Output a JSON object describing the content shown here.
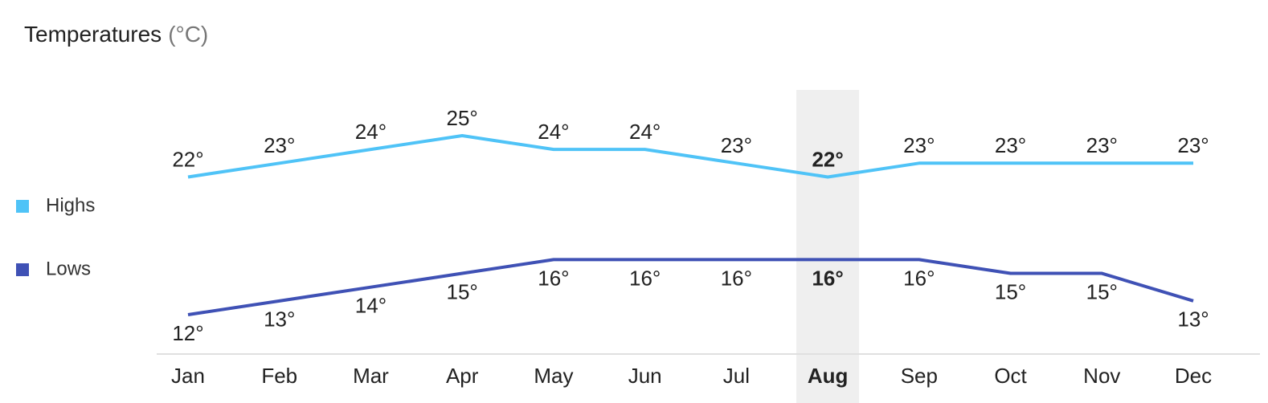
{
  "chart_data": {
    "type": "line",
    "title": "Temperatures",
    "unit": "(°C)",
    "categories": [
      "Jan",
      "Feb",
      "Mar",
      "Apr",
      "May",
      "Jun",
      "Jul",
      "Aug",
      "Sep",
      "Oct",
      "Nov",
      "Dec"
    ],
    "highlight": "Aug",
    "series": [
      {
        "name": "Highs",
        "color": "#4fc3f7",
        "label_side": "above",
        "values": [
          22,
          23,
          24,
          25,
          24,
          24,
          23,
          22,
          23,
          23,
          23,
          23
        ],
        "value_labels": [
          "22°",
          "23°",
          "24°",
          "25°",
          "24°",
          "24°",
          "23°",
          "22°",
          "23°",
          "23°",
          "23°",
          "23°"
        ]
      },
      {
        "name": "Lows",
        "color": "#3f51b5",
        "label_side": "below",
        "values": [
          12,
          13,
          14,
          15,
          16,
          16,
          16,
          16,
          16,
          15,
          15,
          13
        ],
        "value_labels": [
          "12°",
          "13°",
          "14°",
          "15°",
          "16°",
          "16°",
          "16°",
          "16°",
          "16°",
          "15°",
          "15°",
          "13°"
        ]
      }
    ]
  }
}
